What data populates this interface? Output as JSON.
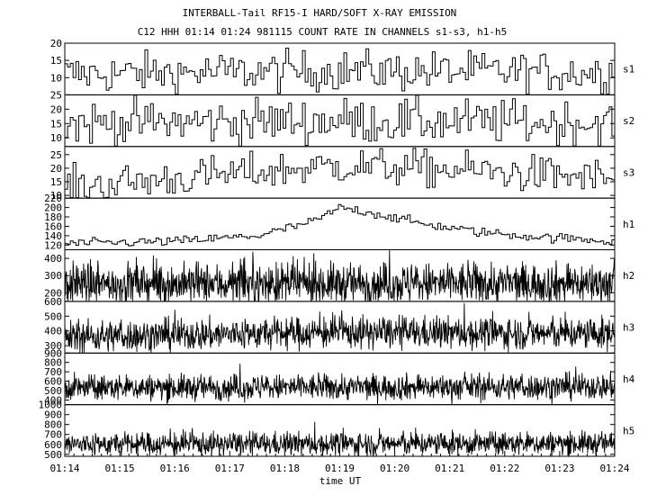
{
  "chart_data": {
    "type": "line",
    "title": "INTERBALL-Tail RF15-I HARD/SOFT X-RAY EMISSION",
    "subtitle": "C12 HHH 01:14 01:24 981115  COUNT RATE IN CHANNELS s1-s3, h1-h5",
    "xlabel": "time UT",
    "x_ticks": [
      "01:14",
      "01:15",
      "01:16",
      "01:17",
      "01:18",
      "01:19",
      "01:20",
      "01:21",
      "01:22",
      "01:23",
      "01:24"
    ],
    "xlim": [
      "01:14",
      "01:24"
    ],
    "panels": [
      {
        "name": "s1",
        "ylim": [
          5,
          20
        ],
        "ticks": [
          10,
          15,
          20
        ],
        "style": "step",
        "points": 200,
        "profile": [
          [
            0,
            11
          ],
          [
            0.5,
            12
          ],
          [
            1,
            11.5
          ]
        ],
        "noise": 3.0
      },
      {
        "name": "s2",
        "ylim": [
          7,
          25
        ],
        "ticks": [
          10,
          15,
          20,
          25
        ],
        "style": "step",
        "points": 200,
        "profile": [
          [
            0,
            15
          ],
          [
            0.5,
            16
          ],
          [
            1,
            15
          ]
        ],
        "noise": 4.0
      },
      {
        "name": "s3",
        "ylim": [
          9,
          28
        ],
        "ticks": [
          10,
          15,
          20,
          25
        ],
        "style": "step",
        "points": 200,
        "profile": [
          [
            0,
            13
          ],
          [
            0.25,
            17
          ],
          [
            0.5,
            21
          ],
          [
            0.75,
            19
          ],
          [
            1,
            16
          ]
        ],
        "noise": 3.5
      },
      {
        "name": "h1",
        "ylim": [
          110,
          220
        ],
        "ticks": [
          120,
          140,
          160,
          180,
          200,
          220
        ],
        "style": "step",
        "points": 200,
        "profile": [
          [
            0,
            123
          ],
          [
            0.2,
            128
          ],
          [
            0.35,
            140
          ],
          [
            0.45,
            170
          ],
          [
            0.5,
            200
          ],
          [
            0.55,
            190
          ],
          [
            0.65,
            165
          ],
          [
            0.75,
            148
          ],
          [
            0.85,
            138
          ],
          [
            1,
            128
          ]
        ],
        "noise": 5.0
      },
      {
        "name": "h2",
        "ylim": [
          150,
          450
        ],
        "ticks": [
          200,
          300,
          400
        ],
        "style": "dense",
        "points": 1200,
        "profile": [
          [
            0,
            250
          ],
          [
            1,
            255
          ]
        ],
        "noise": 60.0
      },
      {
        "name": "h3",
        "ylim": [
          250,
          600
        ],
        "ticks": [
          300,
          400,
          500,
          600
        ],
        "style": "dense",
        "points": 1200,
        "profile": [
          [
            0,
            360
          ],
          [
            0.5,
            390
          ],
          [
            1,
            380
          ]
        ],
        "noise": 55.0
      },
      {
        "name": "h4",
        "ylim": [
          350,
          900
        ],
        "ticks": [
          400,
          500,
          600,
          700,
          800,
          900
        ],
        "style": "dense",
        "points": 1200,
        "profile": [
          [
            0,
            530
          ],
          [
            1,
            540
          ]
        ],
        "noise": 70.0
      },
      {
        "name": "h5",
        "ylim": [
          480,
          1000
        ],
        "ticks": [
          500,
          600,
          700,
          800,
          900,
          1000
        ],
        "style": "dense",
        "points": 1200,
        "profile": [
          [
            0,
            600
          ],
          [
            1,
            610
          ]
        ],
        "noise": 60.0
      }
    ]
  }
}
